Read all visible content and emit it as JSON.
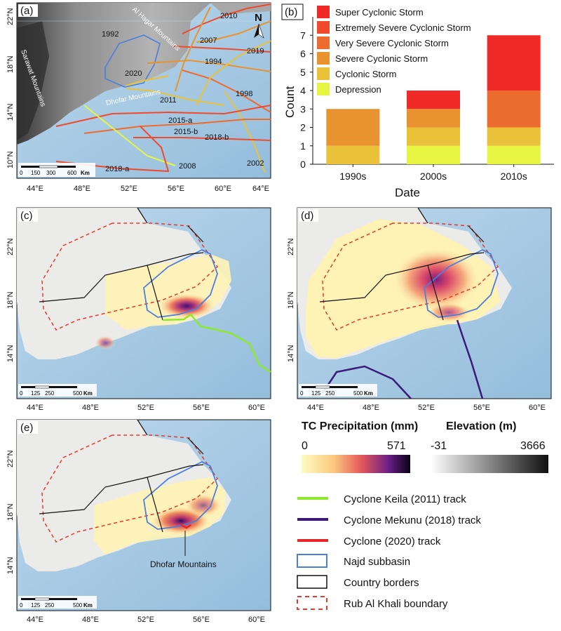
{
  "panels": {
    "a": {
      "label": "(a)",
      "lat_ticks": [
        "22°N",
        "18°N",
        "14°N",
        "10°N"
      ],
      "lon_ticks": [
        "44°E",
        "48°E",
        "52°E",
        "56°E",
        "60°E",
        "64°E"
      ],
      "place_labels": [
        "Al Hagar Mountains",
        "Sarawat Mountains",
        "Dhofar Mountains"
      ],
      "year_labels": [
        "2010",
        "1992",
        "2007",
        "2019",
        "1994",
        "2020",
        "1998",
        "2011",
        "2015-a",
        "2015-b",
        "2018-b",
        "2008",
        "2018-a",
        "2002"
      ],
      "scalebar": [
        "0",
        "150",
        "300",
        "600",
        "Km"
      ],
      "north": "N"
    },
    "b": {
      "label": "(b)",
      "xlabel": "Date",
      "ylabel": "Count"
    },
    "c": {
      "label": "(c)",
      "lat_ticks": [
        "22°N",
        "18°N",
        "14°N"
      ],
      "lon_ticks": [
        "44°E",
        "48°E",
        "52°E",
        "56°E",
        "60°E"
      ],
      "scalebar": [
        "0",
        "125",
        "250",
        "500",
        "Km"
      ]
    },
    "d": {
      "label": "(d)",
      "lat_ticks": [
        "22°N",
        "18°N",
        "14°N"
      ],
      "lon_ticks": [
        "44°E",
        "48°E",
        "52°E",
        "56°E",
        "60°E"
      ],
      "scalebar": [
        "0",
        "125",
        "250",
        "500",
        "Km"
      ]
    },
    "e": {
      "label": "(e)",
      "lat_ticks": [
        "22°N",
        "18°N",
        "14°N"
      ],
      "lon_ticks": [
        "44°E",
        "48°E",
        "52°E",
        "56°E",
        "60°E"
      ],
      "scalebar": [
        "0",
        "125",
        "250",
        "500",
        "Km"
      ],
      "callout": "Dhofar Mountains"
    }
  },
  "legend": {
    "precip_title": "TC Precipitation (mm)",
    "precip_min": "0",
    "precip_max": "571",
    "elev_title": "Elevation (m)",
    "elev_min": "-31",
    "elev_max": "3666",
    "items": [
      {
        "label": "Cyclone Keila (2011) track",
        "color": "#8ee82f"
      },
      {
        "label": "Cyclone Mekunu (2018) track",
        "color": "#3b1a7a"
      },
      {
        "label": "Cyclone (2020) track",
        "color": "#e8262a"
      },
      {
        "label": "Najd subbasin",
        "color": "#4a7fdc"
      },
      {
        "label": "Country borders",
        "color": "#111111"
      },
      {
        "label": "Rub Al Khali boundary",
        "color": "#e83a2a"
      }
    ]
  },
  "chart_data": {
    "type": "bar",
    "stacked": true,
    "categories": [
      "1990s",
      "2000s",
      "2010s"
    ],
    "xlabel": "Date",
    "ylabel": "Count",
    "ylim": [
      0,
      8
    ],
    "yticks": [
      0,
      1,
      2,
      3,
      4,
      5,
      6,
      7
    ],
    "legend_position": "top-left",
    "series": [
      {
        "name": "Depression",
        "color": "#e6f542",
        "values": [
          0,
          1,
          1
        ]
      },
      {
        "name": "Cyclonic Storm",
        "color": "#e9c23a",
        "values": [
          1,
          1,
          1
        ]
      },
      {
        "name": "Severe Cyclonic Storm",
        "color": "#e8932f",
        "values": [
          2,
          1,
          0
        ]
      },
      {
        "name": "Very Severe Cyclonic Storm",
        "color": "#ec6b2e",
        "values": [
          0,
          0,
          2
        ]
      },
      {
        "name": "Extremely Severe Cyclonic Storm",
        "color": "#ef4a2c",
        "values": [
          0,
          0,
          0
        ]
      },
      {
        "name": "Super Cyclonic Storm",
        "color": "#f02a26",
        "values": [
          0,
          1,
          3
        ]
      }
    ]
  }
}
